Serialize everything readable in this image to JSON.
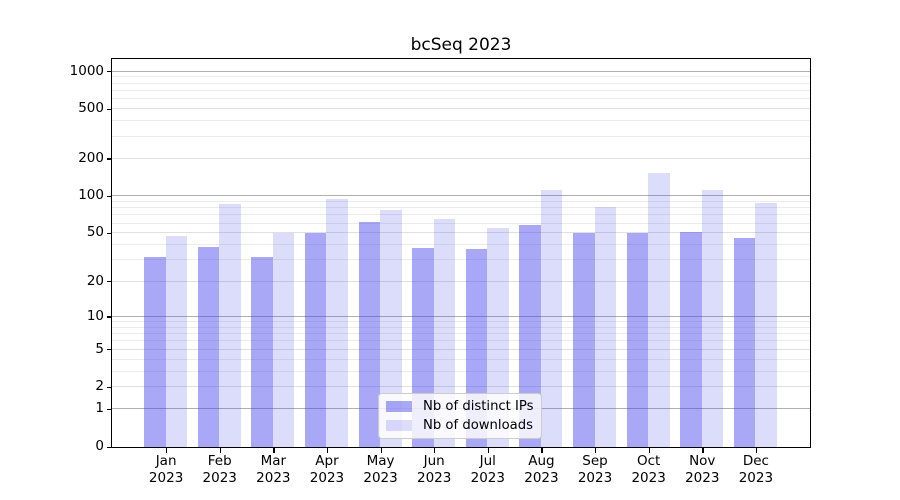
{
  "title": "bcSeq 2023",
  "chart_data": {
    "type": "bar",
    "title": "bcSeq 2023",
    "categories": [
      "Jan",
      "Feb",
      "Mar",
      "Apr",
      "May",
      "Jun",
      "Jul",
      "Aug",
      "Sep",
      "Oct",
      "Nov",
      "Dec"
    ],
    "category_year": "2023",
    "series": [
      {
        "name": "Nb of distinct IPs",
        "color": "rgba(62,62,235,0.45)",
        "values": [
          32,
          39,
          32,
          50,
          62,
          38,
          37,
          58,
          50,
          50,
          51,
          46
        ]
      },
      {
        "name": "Nb of downloads",
        "color": "rgba(62,62,235,0.18)",
        "values": [
          48,
          87,
          50,
          95,
          78,
          65,
          55,
          112,
          82,
          155,
          112,
          88
        ]
      }
    ],
    "yscale": "log1p",
    "ylim": [
      0,
      1250
    ],
    "yticks": [
      0,
      1,
      2,
      5,
      10,
      20,
      50,
      100,
      200,
      500,
      1000
    ],
    "major_gridlines": [
      1,
      10,
      100,
      1000
    ],
    "labeled_gridlines": [
      2,
      5,
      20,
      50,
      200,
      500
    ],
    "minor_gridlines": [
      3,
      4,
      6,
      7,
      8,
      9,
      30,
      40,
      60,
      70,
      80,
      90,
      300,
      400,
      600,
      700,
      800,
      900
    ],
    "grid": true,
    "legend_position": "lower center"
  },
  "colors": {
    "bar_distinct_ips": "rgba(62,62,235,0.45)",
    "bar_downloads": "rgba(62,62,235,0.18)",
    "grid_major": "#b0b0b0",
    "grid_minor": "#ececec",
    "legend_border": "#cccccc",
    "axis": "#000000"
  }
}
